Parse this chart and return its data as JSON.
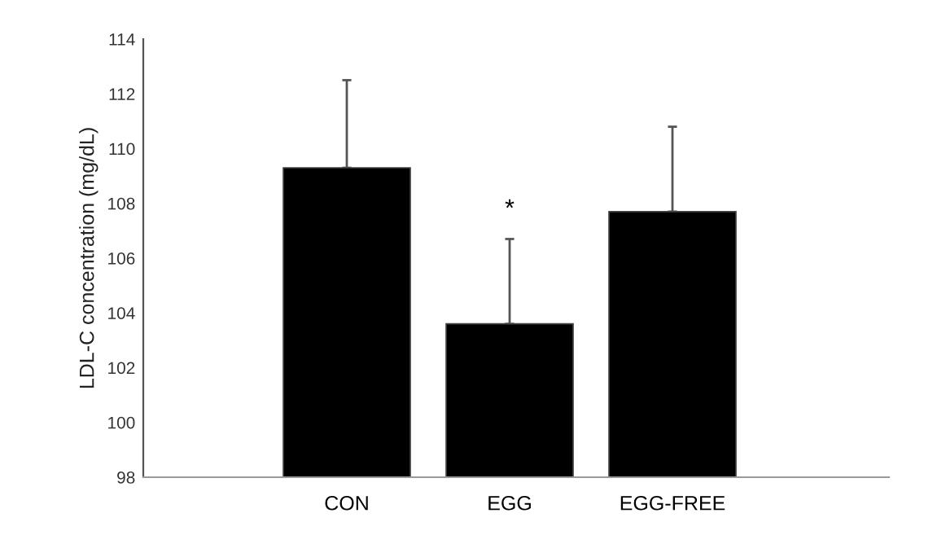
{
  "chart_data": {
    "type": "bar",
    "ylabel": "LDL-C concentration (mg/dL)",
    "categories": [
      "CON",
      "EGG",
      "EGG-FREE"
    ],
    "values": [
      109.3,
      103.6,
      107.7
    ],
    "errors": [
      [
        109.3,
        112.5
      ],
      [
        103.6,
        106.7
      ],
      [
        107.7,
        110.8
      ]
    ],
    "color": "#000000",
    "ylim": [
      98,
      114
    ],
    "yticks": [
      98,
      100,
      102,
      104,
      106,
      108,
      110,
      112,
      114
    ],
    "annotations": [
      "*"
    ],
    "grid": false,
    "legend": false
  }
}
